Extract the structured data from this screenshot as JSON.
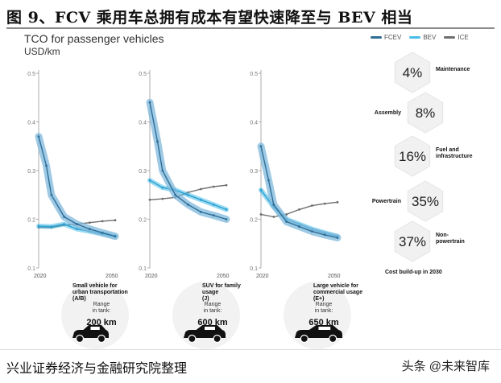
{
  "figure_title": "图 9、FCV 乘用车总拥有成本有望快速降至与 BEV 相当",
  "footer": {
    "source": "兴业证券经济与金融研究院整理",
    "watermark": "头条 @未来智库"
  },
  "colors": {
    "fcev": "#2e6d96",
    "fcev_band": "#7fb8dc",
    "bev": "#48bde8",
    "ice": "#6e6e6e",
    "axis": "#9a9a9a"
  },
  "chart_data": {
    "type": "line",
    "title": "TCO for passenger vehicles",
    "ylabel": "USD/km",
    "legend": [
      "FCEV",
      "BEV",
      "ICE"
    ],
    "yticks": [
      "0.5",
      "0.4",
      "0.3",
      "0.2",
      "0.1"
    ],
    "ylim": [
      0.1,
      0.5
    ],
    "xlim": [
      2020,
      2050
    ],
    "xticks": [
      "2020",
      "2050"
    ],
    "panels": [
      {
        "caption": [
          "Small vehicle for",
          "urban transportation",
          "(A/B)"
        ],
        "range_label": [
          "Range",
          "in tank:"
        ],
        "range_value": "200 km",
        "series": [
          {
            "name": "FCEV",
            "x": [
              2020,
              2023,
              2025,
              2030,
              2035,
              2040,
              2045,
              2050
            ],
            "values": [
              0.37,
              0.31,
              0.25,
              0.205,
              0.19,
              0.18,
              0.172,
              0.165
            ]
          },
          {
            "name": "BEV",
            "x": [
              2020,
              2025,
              2030,
              2035,
              2040,
              2045,
              2050
            ],
            "values": [
              0.186,
              0.185,
              0.19,
              0.18,
              0.175,
              0.17,
              0.165
            ]
          },
          {
            "name": "ICE",
            "x": [
              2020,
              2025,
              2030,
              2035,
              2040,
              2045,
              2050
            ],
            "values": [
              0.183,
              0.183,
              0.188,
              0.19,
              0.193,
              0.196,
              0.198
            ]
          }
        ]
      },
      {
        "caption": [
          "SUV for family",
          "usage",
          "(J)"
        ],
        "range_label": [
          "Range",
          "in tank:"
        ],
        "range_value": "600 km",
        "series": [
          {
            "name": "FCEV",
            "x": [
              2020,
              2023,
              2025,
              2030,
              2035,
              2040,
              2045,
              2050
            ],
            "values": [
              0.44,
              0.36,
              0.3,
              0.25,
              0.23,
              0.215,
              0.208,
              0.2
            ]
          },
          {
            "name": "BEV",
            "x": [
              2020,
              2025,
              2030,
              2035,
              2040,
              2045,
              2050
            ],
            "values": [
              0.28,
              0.265,
              0.26,
              0.25,
              0.24,
              0.23,
              0.22
            ]
          },
          {
            "name": "ICE",
            "x": [
              2020,
              2025,
              2030,
              2035,
              2040,
              2045,
              2050
            ],
            "values": [
              0.24,
              0.242,
              0.245,
              0.255,
              0.262,
              0.267,
              0.27
            ]
          }
        ]
      },
      {
        "caption": [
          "Large vehicle for",
          "commercial usage",
          "(E+)"
        ],
        "range_label": [
          "Range",
          "in tank:"
        ],
        "range_value": "650 km",
        "series": [
          {
            "name": "FCEV",
            "x": [
              2020,
              2023,
              2025,
              2030,
              2035,
              2040,
              2045,
              2050
            ],
            "values": [
              0.35,
              0.28,
              0.23,
              0.195,
              0.185,
              0.175,
              0.168,
              0.162
            ]
          },
          {
            "name": "BEV",
            "x": [
              2020,
              2025,
              2030,
              2035,
              2040,
              2045,
              2050
            ],
            "values": [
              0.26,
              0.225,
              0.2,
              0.19,
              0.18,
              0.172,
              0.165
            ]
          },
          {
            "name": "ICE",
            "x": [
              2020,
              2025,
              2030,
              2035,
              2040,
              2045,
              2050
            ],
            "values": [
              0.21,
              0.205,
              0.21,
              0.22,
              0.228,
              0.232,
              0.235
            ]
          }
        ]
      }
    ],
    "cost_buildup": {
      "title": "Cost build-up in 2030",
      "items": [
        {
          "value": "4%",
          "label": [
            "Maintenance"
          ],
          "side": "right"
        },
        {
          "value": "8%",
          "label": [
            "Assembly"
          ],
          "side": "left"
        },
        {
          "value": "16%",
          "label": [
            "Fuel and",
            "infrastructure"
          ],
          "side": "right"
        },
        {
          "value": "35%",
          "label": [
            "Powertrain"
          ],
          "side": "left"
        },
        {
          "value": "37%",
          "label": [
            "Non-",
            "powertrain"
          ],
          "side": "right"
        }
      ]
    }
  }
}
